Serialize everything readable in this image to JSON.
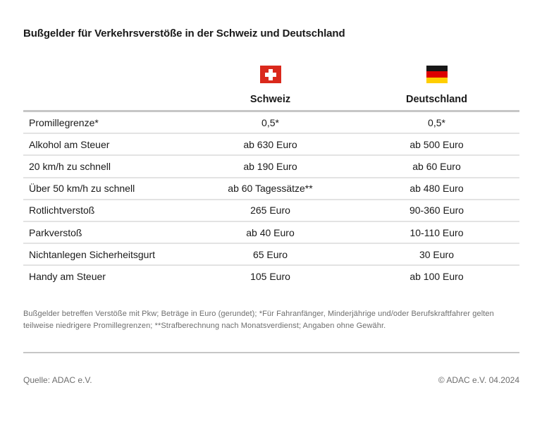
{
  "chart_data": {
    "type": "table",
    "title": "Bußgelder für Verkehrsverstöße in der Schweiz und Deutschland",
    "columns": [
      "",
      "Schweiz",
      "Deutschland"
    ],
    "rows": [
      [
        "Promillegrenze*",
        "0,5*",
        "0,5*"
      ],
      [
        "Alkohol am Steuer",
        "ab 630 Euro",
        "ab 500 Euro"
      ],
      [
        "20 km/h zu schnell",
        "ab 190 Euro",
        "ab 60 Euro"
      ],
      [
        "Über 50 km/h zu schnell",
        "ab 60 Tagessätze**",
        "ab 480 Euro"
      ],
      [
        "Rotlichtverstoß",
        "265 Euro",
        "90-360 Euro"
      ],
      [
        "Parkverstoß",
        "ab 40 Euro",
        "10-110 Euro"
      ],
      [
        "Nichtanlegen Sicherheitsgurt",
        "65 Euro",
        "30 Euro"
      ],
      [
        "Handy am Steuer",
        "105 Euro",
        "ab 100 Euro"
      ]
    ],
    "legend_position": "none",
    "grid": "horizontal-row-dividers"
  },
  "icons": {
    "schweiz": "switzerland-flag-icon",
    "deutschland": "germany-flag-icon"
  },
  "footnote": "Bußgelder betreffen Verstöße mit Pkw; Beträge in Euro (gerundet); *Für Fahranfänger, Minderjährige und/oder Berufskraftfahrer gelten teilweise niedrigere Promillegrenzen; **Strafberechnung nach Monatsverdienst; Angaben ohne Gewähr.",
  "source": "Quelle: ADAC e.V.",
  "copyright": "© ADAC e.V. 04.2024",
  "colors": {
    "swiss-red": "#da291c",
    "german-black": "#171717",
    "german-red": "#dd0000",
    "german-gold": "#ffce00",
    "text": "#1a1a1a",
    "muted-text": "#6e6e6e",
    "divider-strong": "#c6c6c6",
    "divider-light": "#e3e3e3"
  }
}
